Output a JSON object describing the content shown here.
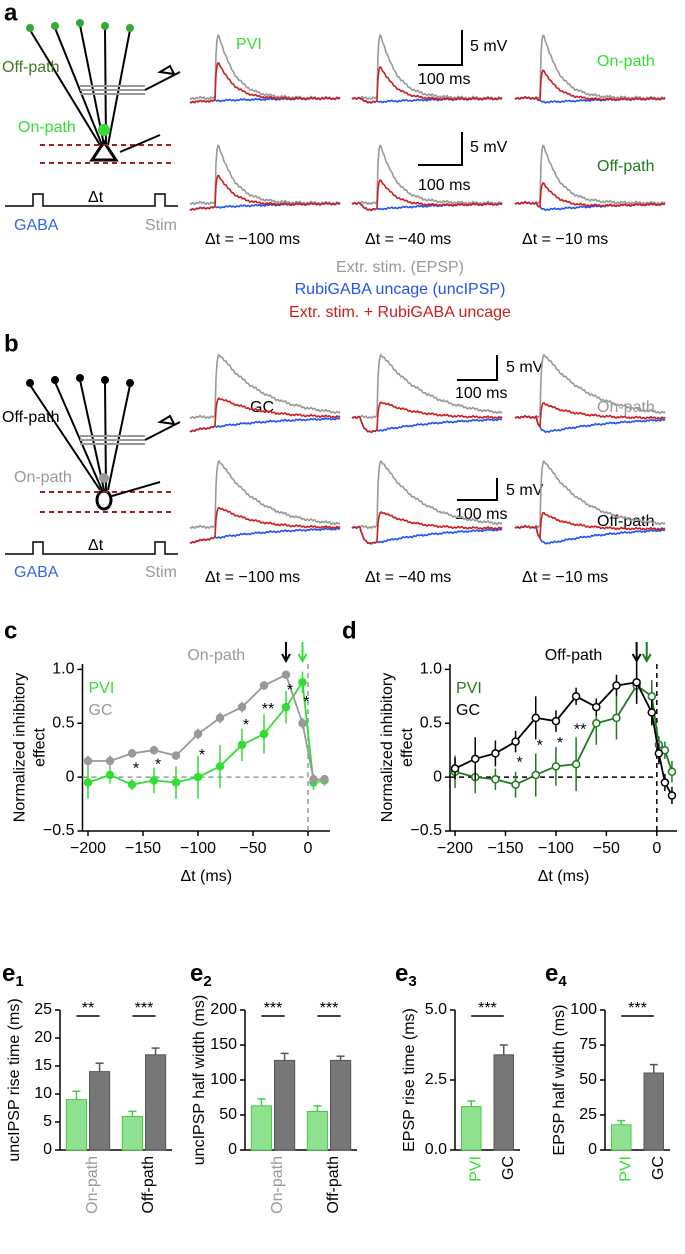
{
  "panel_a": {
    "label": "a",
    "schematic": {
      "off_path": "Off-path",
      "on_path": "On-path",
      "delta": "Δt",
      "gaba": "GABA",
      "stim": "Stim"
    },
    "cell_type": "PVI",
    "scale_bars": [
      {
        "v": "5 mV",
        "t": "100 ms"
      },
      {
        "v": "5 mV",
        "t": "100 ms"
      }
    ],
    "row_labels": [
      "On-path",
      "Off-path"
    ],
    "delays": [
      "Δt = −100 ms",
      "Δt = −40 ms",
      "Δt = −10 ms"
    ],
    "legend": [
      "Extr. stim. (EPSP)",
      "RubiGABA uncage (uncIPSP)",
      "Extr. stim. + RubiGABA uncage"
    ]
  },
  "panel_b": {
    "label": "b",
    "schematic": {
      "off_path": "Off-path",
      "on_path": "On-path",
      "delta": "Δt",
      "gaba": "GABA",
      "stim": "Stim"
    },
    "cell_type": "GC",
    "scale_bars": [
      {
        "v": "5 mV",
        "t": "100 ms"
      },
      {
        "v": "5 mV",
        "t": "100 ms"
      }
    ],
    "row_labels": [
      "On-path",
      "Off-path"
    ],
    "delays": [
      "Δt = −100 ms",
      "Δt = −40 ms",
      "Δt = −10 ms"
    ]
  },
  "chart_data": [
    {
      "type": "line",
      "panel": "c",
      "title": "On-path",
      "title_color": "#999999",
      "xlabel": "Δt (ms)",
      "ylabel": [
        "Normalized inhibitory",
        "effect"
      ],
      "x": [
        -200,
        -180,
        -160,
        -140,
        -120,
        -100,
        -80,
        -60,
        -40,
        -20,
        -5,
        5,
        15
      ],
      "series": [
        {
          "name": "PVI",
          "color": "#33dd33",
          "values": [
            -0.05,
            0.02,
            -0.07,
            -0.03,
            -0.05,
            0,
            0.1,
            0.3,
            0.4,
            0.65,
            0.88,
            -0.05,
            -0.03
          ],
          "errors": [
            0.15,
            0.08,
            0.05,
            0.12,
            0.15,
            0.2,
            0.2,
            0.15,
            0.18,
            0.15,
            0.1,
            0.07,
            0.05
          ]
        },
        {
          "name": "GC",
          "color": "#999999",
          "values": [
            0.15,
            0.15,
            0.22,
            0.25,
            0.2,
            0.4,
            0.55,
            0.65,
            0.85,
            0.95,
            0.5,
            -0.02,
            -0.02
          ],
          "errors": [
            0.05,
            0.05,
            0.04,
            0.04,
            0.04,
            0.05,
            0.05,
            0.05,
            0.04,
            0.03,
            0.05,
            0.05,
            0.04
          ]
        }
      ],
      "markers": "filled",
      "ref_color": "#999999",
      "xlim": [
        -205,
        20
      ],
      "ylim": [
        -0.5,
        1.05
      ],
      "xticks": [
        {
          "value": -200,
          "label": "−200"
        },
        {
          "value": -150,
          "label": "−150"
        },
        {
          "value": -100,
          "label": "−100"
        },
        {
          "value": -50,
          "label": "−50"
        },
        0
      ],
      "yticks": [
        {
          "value": -0.5,
          "label": "−0.5"
        },
        0,
        0.5,
        {
          "value": 1,
          "label": "1.0"
        }
      ],
      "significance": {
        "x": [
          -160,
          -140,
          -100,
          -60,
          -40,
          -20,
          -5
        ],
        "labels": [
          "*",
          "*",
          "*",
          "*",
          "**",
          "*",
          "*"
        ]
      },
      "arrows": [
        {
          "x": -20,
          "color": "#000000"
        },
        {
          "x": -5,
          "color": "#33dd33"
        }
      ],
      "legend": "upper left"
    },
    {
      "type": "line",
      "panel": "d",
      "title": "Off-path",
      "title_color": "#000000",
      "xlabel": "Δt (ms)",
      "ylabel": [
        "Normalized inhibitory",
        "effect"
      ],
      "x": [
        -200,
        -180,
        -160,
        -140,
        -120,
        -100,
        -80,
        -60,
        -40,
        -20,
        -5,
        2,
        8,
        15
      ],
      "series": [
        {
          "name": "PVI",
          "color": "#1f7a1f",
          "values": [
            0.05,
            0,
            -0.02,
            -0.07,
            0.02,
            0.1,
            0.12,
            0.5,
            0.55,
            0.85,
            0.75,
            0.3,
            0.25,
            0.05
          ],
          "errors": [
            0.15,
            0.15,
            0.1,
            0.12,
            0.2,
            0.18,
            0.25,
            0.2,
            0.2,
            0.12,
            0.15,
            0.08,
            0.08,
            0.1
          ]
        },
        {
          "name": "GC",
          "color": "#000000",
          "values": [
            0.08,
            0.17,
            0.22,
            0.33,
            0.55,
            0.52,
            0.75,
            0.65,
            0.85,
            0.88,
            0.6,
            0.22,
            -0.05,
            -0.17
          ],
          "errors": [
            0.1,
            0.2,
            0.12,
            0.1,
            0.2,
            0.1,
            0.08,
            0.08,
            0.1,
            0.2,
            0.12,
            0.1,
            0.08,
            0.08
          ]
        }
      ],
      "markers": "hollow",
      "ref_color": "#000000",
      "xlim": [
        -205,
        20
      ],
      "ylim": [
        -0.5,
        1.05
      ],
      "xticks": [
        {
          "value": -200,
          "label": "−200"
        },
        {
          "value": -150,
          "label": "−150"
        },
        {
          "value": -100,
          "label": "−100"
        },
        {
          "value": -50,
          "label": "−50"
        },
        0
      ],
      "yticks": [
        {
          "value": -0.5,
          "label": "−0.5"
        },
        0,
        0.5,
        {
          "value": 1,
          "label": "1.0"
        }
      ],
      "significance": {
        "x": [
          -140,
          -120,
          -100,
          -80
        ],
        "labels": [
          "*",
          "*",
          "*",
          "**"
        ]
      },
      "arrows": [
        {
          "x": -20,
          "color": "#000000"
        },
        {
          "x": -10,
          "color": "#1f7a1f"
        }
      ],
      "legend": "upper left"
    },
    {
      "type": "bar",
      "panel": {
        "letter": "e",
        "sub": "1"
      },
      "ylabel": "uncIPSP rise time (ms)",
      "categories": [
        "On-path",
        "Off-path"
      ],
      "category_colors": [
        "#999999",
        "#000000"
      ],
      "series": [
        {
          "name": "PVI",
          "color": "#8fe08f",
          "values": [
            9,
            6
          ],
          "errors": [
            1.5,
            0.9
          ]
        },
        {
          "name": "GC",
          "color": "#777777",
          "values": [
            14,
            17
          ],
          "errors": [
            1.5,
            1.2
          ]
        }
      ],
      "ylim": [
        0,
        25
      ],
      "yticks": [
        0,
        5,
        10,
        15,
        20,
        25
      ],
      "significance": [
        "**",
        "***"
      ]
    },
    {
      "type": "bar",
      "panel": {
        "letter": "e",
        "sub": "2"
      },
      "ylabel": "uncIPSP half width (ms)",
      "categories": [
        "On-path",
        "Off-path"
      ],
      "category_colors": [
        "#999999",
        "#000000"
      ],
      "series": [
        {
          "name": "PVI",
          "color": "#8fe08f",
          "values": [
            63,
            55
          ],
          "errors": [
            10,
            8
          ]
        },
        {
          "name": "GC",
          "color": "#777777",
          "values": [
            128,
            128
          ],
          "errors": [
            10,
            6
          ]
        }
      ],
      "ylim": [
        0,
        200
      ],
      "yticks": [
        0,
        50,
        100,
        150,
        200
      ],
      "significance": [
        "***",
        "***"
      ]
    },
    {
      "type": "bar",
      "panel": {
        "letter": "e",
        "sub": "3"
      },
      "ylabel": "EPSP rise time (ms)",
      "categories": [
        "PVI",
        "GC"
      ],
      "category_colors": [
        "#33dd33",
        "#000000"
      ],
      "values": [
        1.55,
        3.4
      ],
      "errors": [
        0.2,
        0.35
      ],
      "colors": [
        "#8fe08f",
        "#777777"
      ],
      "ylim": [
        0,
        5
      ],
      "yticks": [
        {
          "value": 0,
          "label": "0.0"
        },
        2.5,
        {
          "value": 5,
          "label": "5.0"
        }
      ],
      "significance": [
        "***"
      ]
    },
    {
      "type": "bar",
      "panel": {
        "letter": "e",
        "sub": "4"
      },
      "ylabel": "EPSP half width (ms)",
      "categories": [
        "PVI",
        "GC"
      ],
      "category_colors": [
        "#33dd33",
        "#000000"
      ],
      "values": [
        18,
        55
      ],
      "errors": [
        3,
        6
      ],
      "colors": [
        "#8fe08f",
        "#777777"
      ],
      "ylim": [
        0,
        100
      ],
      "yticks": [
        0,
        25,
        50,
        75,
        100
      ],
      "significance": [
        "***"
      ]
    }
  ]
}
